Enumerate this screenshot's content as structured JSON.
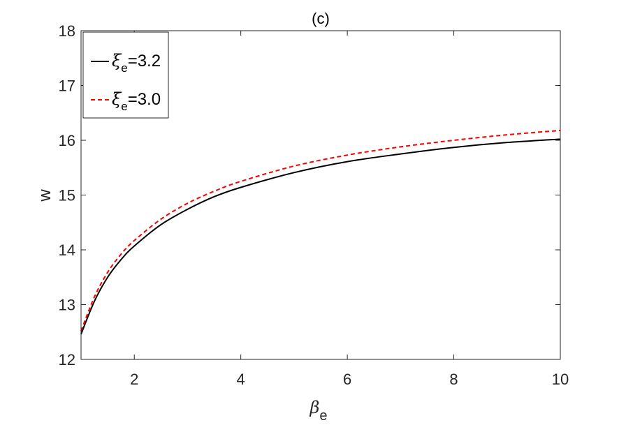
{
  "chart_data": {
    "type": "line",
    "title": "(c)",
    "xlabel": {
      "symbol": "β",
      "subscript": "e"
    },
    "ylabel": "w",
    "xlim": [
      1,
      10
    ],
    "ylim": [
      12,
      18
    ],
    "x_ticks": [
      2,
      4,
      6,
      8,
      10
    ],
    "y_ticks": [
      12,
      13,
      14,
      15,
      16,
      17,
      18
    ],
    "grid": false,
    "legend_position": "top-left",
    "series": [
      {
        "name": {
          "symbol": "ξ",
          "subscript": "e",
          "value": "=3.2"
        },
        "color": "#000000",
        "style": "solid",
        "x": [
          1.0,
          1.25,
          1.5,
          1.75,
          2.0,
          2.5,
          3.0,
          3.5,
          4.0,
          5.0,
          6.0,
          7.0,
          8.0,
          9.0,
          10.0
        ],
        "y": [
          12.46,
          13.06,
          13.5,
          13.82,
          14.07,
          14.46,
          14.74,
          14.97,
          15.14,
          15.41,
          15.61,
          15.75,
          15.87,
          15.96,
          16.02
        ]
      },
      {
        "name": {
          "symbol": "ξ",
          "subscript": "e",
          "value": "=3.0"
        },
        "color": "#ff0000",
        "style": "dashed",
        "x": [
          1.0,
          1.25,
          1.5,
          1.75,
          2.0,
          2.5,
          3.0,
          3.5,
          4.0,
          5.0,
          6.0,
          7.0,
          8.0,
          9.0,
          10.0
        ],
        "y": [
          12.52,
          13.14,
          13.59,
          13.92,
          14.17,
          14.56,
          14.85,
          15.07,
          15.25,
          15.53,
          15.73,
          15.88,
          16.0,
          16.1,
          16.18
        ]
      }
    ]
  }
}
